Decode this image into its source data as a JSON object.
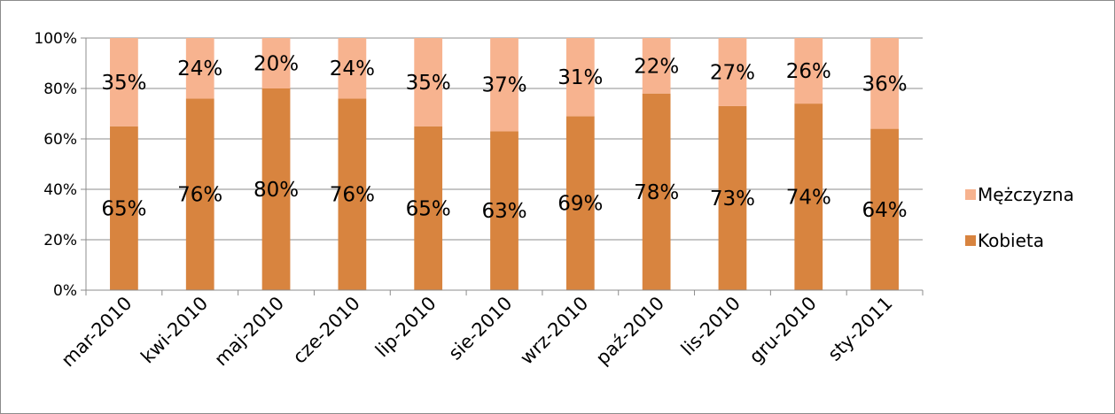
{
  "chart_data": {
    "type": "bar",
    "stacked": true,
    "categories": [
      "mar-2010",
      "kwi-2010",
      "maj-2010",
      "cze-2010",
      "lip-2010",
      "sie-2010",
      "wrz-2010",
      "paź-2010",
      "lis-2010",
      "gru-2010",
      "sty-2011"
    ],
    "series": [
      {
        "name": "Kobieta",
        "values": [
          65,
          76,
          80,
          76,
          65,
          63,
          69,
          78,
          73,
          74,
          64
        ],
        "labels": [
          "65%",
          "76%",
          "80%",
          "76%",
          "65%",
          "63%",
          "69%",
          "78%",
          "73%",
          "74%",
          "64%"
        ],
        "color": "#d8843f"
      },
      {
        "name": "Mężczyzna",
        "values": [
          35,
          24,
          20,
          24,
          35,
          37,
          31,
          22,
          27,
          26,
          36
        ],
        "labels": [
          "35%",
          "24%",
          "20%",
          "24%",
          "35%",
          "37%",
          "31%",
          "22%",
          "27%",
          "26%",
          "36%"
        ],
        "color": "#f7b38f"
      }
    ],
    "yticks": [
      "0%",
      "20%",
      "40%",
      "60%",
      "80%",
      "100%"
    ],
    "ylim": [
      0,
      100
    ],
    "grid": true,
    "legend": "right",
    "title": "",
    "xlabel": "",
    "ylabel": ""
  }
}
